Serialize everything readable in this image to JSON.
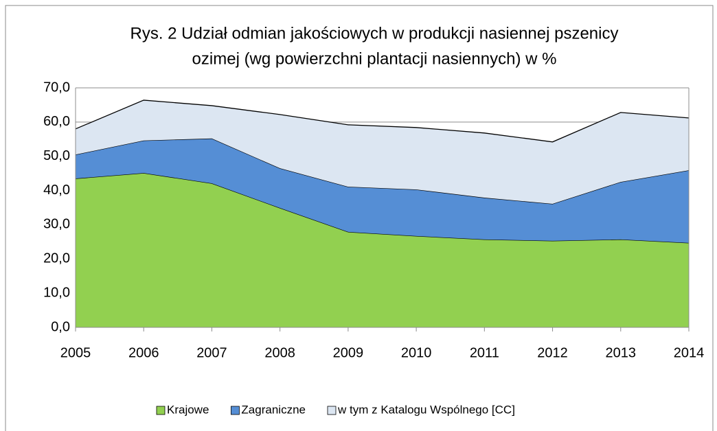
{
  "chart_data": {
    "type": "stacked_area",
    "title": [
      "Rys. 2 Udział odmian jakościowych w produkcji nasiennej pszenicy",
      "ozimej (wg powierzchni plantacji nasiennych) w %"
    ],
    "categories": [
      "2005",
      "2006",
      "2007",
      "2008",
      "2009",
      "2010",
      "2011",
      "2012",
      "2013",
      "2014"
    ],
    "series": [
      {
        "name": "Krajowe",
        "color": "#92d050",
        "values": [
          43.5,
          45.1,
          42.1,
          34.9,
          27.9,
          26.7,
          25.7,
          25.3,
          25.7,
          24.7
        ]
      },
      {
        "name": "Zagraniczne",
        "color": "#558ed5",
        "values": [
          7.0,
          9.5,
          13.1,
          11.6,
          13.2,
          13.6,
          12.2,
          10.8,
          16.8,
          21.2
        ]
      },
      {
        "name": "w tym z Katalogu Wspólnego [CC]",
        "color": "#dce6f2",
        "values": [
          7.5,
          11.8,
          9.6,
          15.7,
          18.1,
          18.1,
          18.9,
          18.1,
          20.3,
          15.3
        ]
      }
    ],
    "ylim": [
      0,
      70
    ],
    "yticks": [
      {
        "value": 0,
        "label": "0,0"
      },
      {
        "value": 10,
        "label": "10,0"
      },
      {
        "value": 20,
        "label": "20,0"
      },
      {
        "value": 30,
        "label": "30,0"
      },
      {
        "value": 40,
        "label": "40,0"
      },
      {
        "value": 50,
        "label": "50,0"
      },
      {
        "value": 60,
        "label": "60,0"
      },
      {
        "value": 70,
        "label": "70,0"
      }
    ],
    "grid": true,
    "legend": "bottom"
  }
}
